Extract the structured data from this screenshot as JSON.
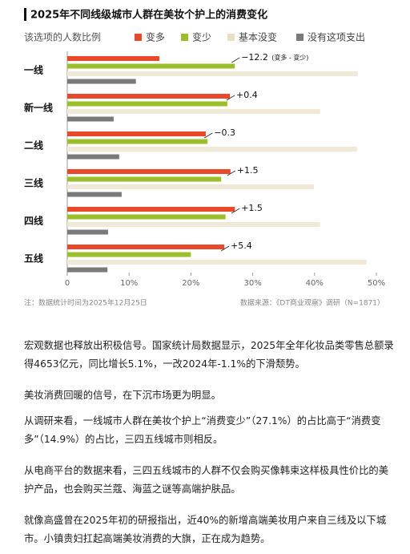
{
  "chart_data": {
    "type": "bar",
    "orientation": "horizontal",
    "title": "2025年不同线级城市人群在美妆个护上的消费变化",
    "subtitle": "该选项的人数比例",
    "categories": [
      "一线",
      "新一线",
      "二线",
      "三线",
      "四线",
      "五线"
    ],
    "series": [
      {
        "name": "变多",
        "color": "#e8492a",
        "values": [
          14.9,
          26.3,
          22.4,
          26.4,
          27.1,
          25.4
        ]
      },
      {
        "name": "变少",
        "color": "#9bbf2a",
        "values": [
          27.1,
          25.9,
          22.7,
          24.9,
          25.6,
          20.0
        ]
      },
      {
        "name": "基本没变",
        "color": "#f0e9d8",
        "values": [
          47.0,
          40.9,
          46.9,
          39.9,
          40.9,
          48.4
        ]
      },
      {
        "name": "没有这项支出",
        "color": "#7a7a7a",
        "values": [
          11.1,
          7.5,
          8.4,
          8.8,
          6.6,
          6.5
        ]
      }
    ],
    "annotations": [
      "−12.2",
      "+0.4",
      "−0.3",
      "+1.5",
      "+1.5",
      "+5.4"
    ],
    "annotation_note": "(变多 - 变少)",
    "xlim": [
      0,
      50
    ],
    "xticks": [
      0,
      {
        "value": 10,
        "label": "10%"
      },
      {
        "value": 20,
        "label": "20%"
      },
      {
        "value": 30,
        "label": "30%"
      },
      {
        "value": 40,
        "label": "40%"
      },
      {
        "value": 50,
        "label": "50%"
      }
    ],
    "note": "注：数据统计时间为2025年12月25日",
    "source": "数据来源：《DT商业观察》调研（N=1871）"
  },
  "article": {
    "paragraphs": [
      "宏观数据也释放出积极信号。国家统计局数据显示，2025年全年化妆品类零售总额录得4653亿元，同比增长5.1%，一改2024年-1.1%的下滑颓势。",
      "美妆消费回暖的信号，在下沉市场更为明显。",
      "从调研来看，一线城市人群在美妆个护上“消费变少”（27.1%）的占比高于“消费变多”（14.9%）的占比，三四五线城市则相反。",
      "从电商平台的数据来看，三四五线城市的人群不仅会购买像韩束这样极具性价比的美护产品，也会购买兰蔻、海蓝之谜等高端护肤品。",
      "就像高盛曾在2025年初的研报指出，近40%的新增高端美妆用户来自三线及以下城市。小镇贵妇扛起高端美妆消费的大旗，正在成为趋势。"
    ]
  }
}
